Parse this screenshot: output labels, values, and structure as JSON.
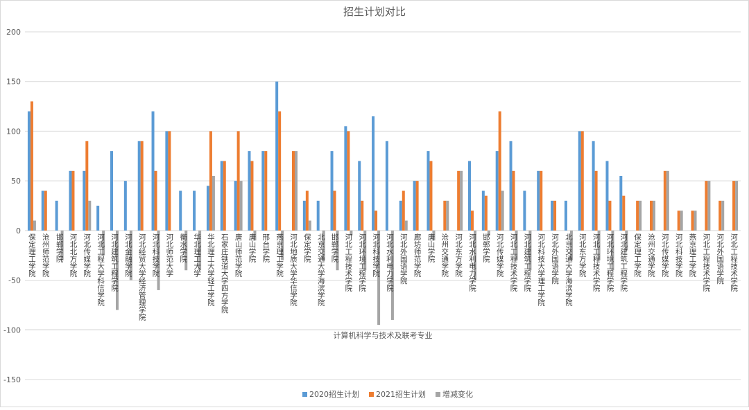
{
  "chart_data": {
    "type": "bar",
    "title": "招生计划对比",
    "x_label": "计算机科学与技术及联考专业",
    "categories": [
      "保定理工学院",
      "沧州师范学院",
      "邯郸学院",
      "河北北方学院",
      "河北传媒学院",
      "河北工程大学科信学院",
      "河北建筑工程学院",
      "河北金融学院",
      "河北经贸大学经济管理学院",
      "河北科技学院",
      "河北师范大学",
      "衡水学院",
      "华北理工大学",
      "华北理工大学轻工学院",
      "石家庄铁道大学四方学院",
      "唐山师范学院",
      "唐山学院",
      "邢台学院",
      "燕京理工学院",
      "河北地质大学华信学院",
      "保定学院",
      "北京交通大学海滨学院",
      "邯郸学院",
      "河北工程技术学院",
      "河北环境工程学院",
      "河北科技学院",
      "河北水利电力学院",
      "河北外国语学院",
      "廊坊师范学院",
      "唐山学院",
      "沧州交通学院",
      "河北东方学院",
      "河北水利电力学院",
      "邯郸学院",
      "河北传媒学院",
      "河北工程技术学院",
      "河北建筑工程学院",
      "河北科技大学理工学院",
      "河北外国语学院",
      "北京交通大学海滨学院",
      "河北东方学院",
      "河北工程技术学院",
      "河北环境工程学院",
      "河北建筑工程学院",
      "保定理工学院",
      "沧州交通学院",
      "河北传媒学院",
      "河北科技学院",
      "燕京理工学院",
      "河北工程技术学院",
      "河北外国语学院",
      "河北工程技术学院"
    ],
    "series": [
      {
        "name": "2020招生计划",
        "color": "#5b9bd5",
        "values": [
          120,
          40,
          30,
          60,
          60,
          25,
          80,
          50,
          90,
          120,
          100,
          40,
          40,
          45,
          70,
          50,
          80,
          80,
          150,
          0,
          30,
          30,
          80,
          105,
          70,
          115,
          90,
          30,
          50,
          80,
          0,
          0,
          70,
          40,
          80,
          90,
          40,
          60,
          30,
          30,
          100,
          90,
          70,
          55,
          0,
          0,
          0,
          0,
          0,
          0,
          0,
          0
        ]
      },
      {
        "name": "2021招生计划",
        "color": "#ed7d31",
        "values": [
          130,
          40,
          0,
          60,
          90,
          0,
          0,
          0,
          90,
          60,
          100,
          0,
          0,
          100,
          70,
          100,
          70,
          80,
          120,
          80,
          40,
          0,
          40,
          100,
          30,
          20,
          0,
          40,
          50,
          70,
          30,
          60,
          20,
          35,
          120,
          60,
          0,
          60,
          30,
          0,
          100,
          60,
          30,
          35,
          30,
          30,
          60,
          20,
          20,
          50,
          30,
          50
        ]
      },
      {
        "name": "增减变化",
        "color": "#a5a5a5",
        "values": [
          10,
          0,
          -30,
          0,
          30,
          -25,
          -80,
          -50,
          0,
          -60,
          0,
          -40,
          -40,
          55,
          0,
          50,
          -10,
          0,
          -30,
          80,
          10,
          -30,
          -40,
          -5,
          -40,
          -95,
          -90,
          10,
          0,
          -10,
          30,
          60,
          -50,
          -5,
          40,
          -30,
          -40,
          0,
          0,
          -30,
          0,
          -30,
          -40,
          -20,
          30,
          30,
          60,
          20,
          20,
          50,
          30,
          50
        ]
      }
    ],
    "ylim": [
      -150,
      200
    ],
    "yticks": [
      -150,
      -100,
      -50,
      0,
      50,
      100,
      150,
      200
    ],
    "grid": true,
    "legend": "bottom"
  }
}
